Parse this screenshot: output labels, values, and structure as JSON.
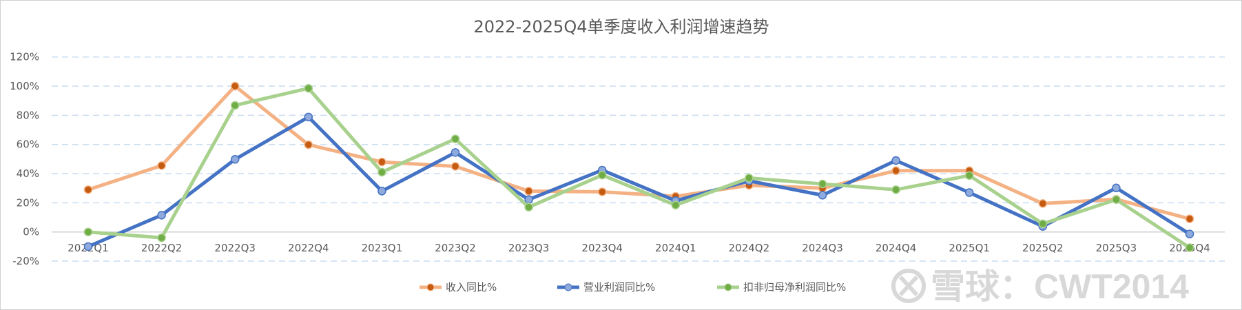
{
  "chart_data": {
    "type": "line",
    "title": "2022-2025Q4单季度收入利润增速趋势",
    "categories": [
      "2022Q1",
      "2022Q2",
      "2022Q3",
      "2022Q4",
      "2023Q1",
      "2023Q2",
      "2023Q3",
      "2023Q4",
      "2024Q1",
      "2024Q2",
      "2024Q3",
      "2024Q4",
      "2025Q1",
      "2025Q2",
      "2025Q3",
      "2025Q4"
    ],
    "ylim": [
      -20,
      120
    ],
    "yticks": [
      -20,
      0,
      20,
      40,
      60,
      80,
      100,
      120
    ],
    "ytick_labels": [
      "-20%",
      "0%",
      "20%",
      "40%",
      "60%",
      "80%",
      "100%",
      "120%"
    ],
    "grid": true,
    "legend_position": "bottom",
    "series": [
      {
        "name": "收入同比%",
        "color": "#F4B183",
        "marker_color": "#C55A11",
        "values": [
          29,
          45.5,
          100,
          59.8,
          48,
          45,
          28,
          27.5,
          24.4,
          32,
          30,
          42,
          42,
          19.5,
          22.4,
          9
        ]
      },
      {
        "name": "营业利润同比%",
        "color": "#4472C4",
        "marker_color": "#8FAADC",
        "values": [
          -10,
          11.5,
          49.8,
          78.8,
          28,
          54.5,
          22.2,
          42.4,
          21.4,
          35,
          25.2,
          49,
          27,
          3.8,
          30.2,
          -1.4
        ]
      },
      {
        "name": "扣非归母净利润同比%",
        "color": "#A9D18E",
        "marker_color": "#70AD47",
        "values": [
          0,
          -4,
          86.8,
          98.5,
          41,
          63.8,
          17,
          39,
          18.4,
          37,
          32.9,
          29,
          38.7,
          5.6,
          22.2,
          -10.8
        ]
      }
    ]
  },
  "watermark": "雪球：CWT2014"
}
